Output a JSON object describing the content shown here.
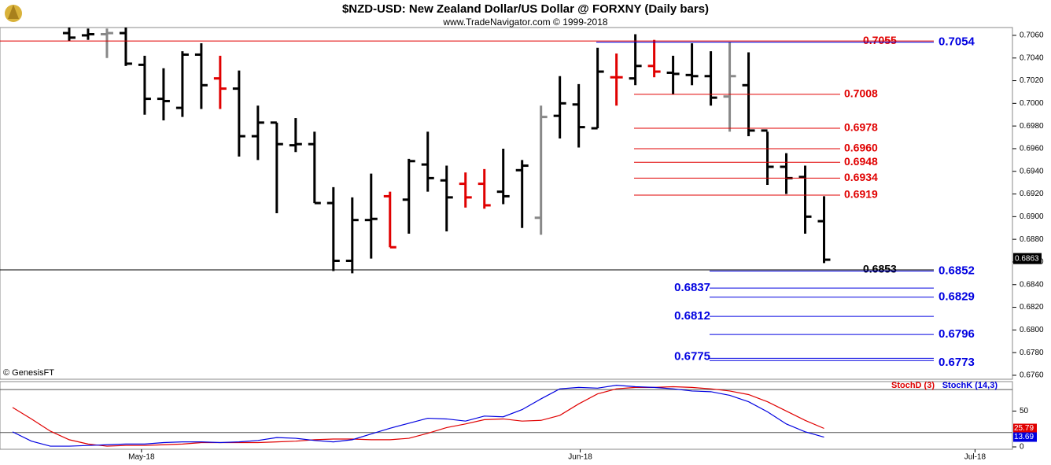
{
  "chart_data": {
    "type": "ohlc",
    "title": "$NZD-USD:  New Zealand Dollar/US Dollar @ FORXNY  (Daily bars)",
    "subtitle": "www.TradeNavigator.com © 1999-2018",
    "credit": "© GenesisFT",
    "xlim": [
      0,
      52.9
    ],
    "xticks": [
      {
        "value": 6.83,
        "label": "May-18"
      },
      {
        "value": 30.08,
        "label": "Jun-18"
      },
      {
        "value": 51,
        "label": "Jul-18"
      }
    ],
    "ylim": [
      0.67565,
      0.70669
    ],
    "yticks": [
      {
        "value": 0.676,
        "label": "0.6760"
      },
      {
        "value": 0.678,
        "label": "0.6780"
      },
      {
        "value": 0.68,
        "label": "0.6800"
      },
      {
        "value": 0.682,
        "label": "0.6820"
      },
      {
        "value": 0.684,
        "label": "0.6840"
      },
      {
        "value": 0.686,
        "label": "0.6860"
      },
      {
        "value": 0.688,
        "label": "0.6880"
      },
      {
        "value": 0.69,
        "label": "0.6900"
      },
      {
        "value": 0.692,
        "label": "0.6920"
      },
      {
        "value": 0.694,
        "label": "0.6940"
      },
      {
        "value": 0.696,
        "label": "0.6960"
      },
      {
        "value": 0.698,
        "label": "0.6980"
      },
      {
        "value": 0.7,
        "label": "0.7000"
      },
      {
        "value": 0.702,
        "label": "0.7020"
      },
      {
        "value": 0.704,
        "label": "0.7040"
      },
      {
        "value": 0.706,
        "label": "0.7060"
      }
    ],
    "last_price": 0.6863,
    "open": [
      null,
      null,
      null,
      0.7062,
      0.706,
      0.7061,
      0.7062,
      0.7034,
      0.7004,
      0.6996,
      0.7043,
      0.7022,
      0.7013,
      0.6971,
      0.6983,
      0.6963,
      0.6964,
      0.6912,
      0.6861,
      0.6897,
      0.6918,
      0.6915,
      0.6946,
      0.6932,
      0.6929,
      0.6929,
      0.6922,
      0.6941,
      0.6899,
      0.6989,
      0.6999,
      0.6978,
      0.7023,
      0.7022,
      0.7033,
      0.7027,
      0.7025,
      0.7024,
      0.7006,
      0.7016,
      0.6976,
      0.6944,
      0.6935,
      0.6896
    ],
    "high": [
      null,
      null,
      null,
      0.7068,
      0.7066,
      0.7066,
      0.7068,
      0.7042,
      0.7031,
      0.7046,
      0.7053,
      0.7042,
      0.7029,
      0.6998,
      0.6983,
      0.6987,
      0.6975,
      0.6926,
      0.6917,
      0.6938,
      0.6922,
      0.6951,
      0.6975,
      0.6945,
      0.6939,
      0.6942,
      0.696,
      0.695,
      0.6998,
      0.7024,
      0.7017,
      0.7049,
      0.7044,
      0.7061,
      0.7056,
      0.7042,
      0.7053,
      0.7046,
      0.7054,
      0.7045,
      0.6975,
      0.6956,
      0.6945,
      0.6918
    ],
    "low": [
      null,
      null,
      null,
      0.7055,
      0.7056,
      0.704,
      0.7033,
      0.699,
      0.6985,
      0.6988,
      0.6995,
      0.6995,
      0.6953,
      0.695,
      0.6903,
      0.6957,
      0.6912,
      0.6852,
      0.685,
      0.6863,
      0.6873,
      0.6885,
      0.6922,
      0.6887,
      0.6908,
      0.6907,
      0.6911,
      0.689,
      0.6884,
      0.6969,
      0.6961,
      0.6978,
      0.6998,
      0.7016,
      0.7023,
      0.7008,
      0.7016,
      0.6998,
      0.6975,
      0.6971,
      0.6928,
      0.692,
      0.6885,
      0.6859
    ],
    "close": [
      null,
      null,
      null,
      0.7058,
      0.7061,
      0.7062,
      0.7035,
      0.7004,
      0.7002,
      0.7043,
      0.7016,
      0.7013,
      0.6971,
      0.6983,
      0.6964,
      0.6964,
      0.6912,
      0.6861,
      0.6897,
      0.6898,
      0.6873,
      0.6949,
      0.6934,
      0.6917,
      0.6917,
      0.691,
      0.6918,
      0.6945,
      0.6988,
      0.7,
      0.6979,
      0.7028,
      0.7023,
      0.7033,
      0.7028,
      0.7026,
      0.7024,
      0.7005,
      0.7024,
      0.6976,
      0.6944,
      0.6934,
      0.69,
      0.6862
    ],
    "bar_colors": [
      null,
      null,
      null,
      "#000",
      "#000",
      "#888",
      "#000",
      "#000",
      "#000",
      "#000",
      "#000",
      "#e00000",
      "#000",
      "#000",
      "#000",
      "#000",
      "#000",
      "#000",
      "#000",
      "#000",
      "#e00000",
      "#000",
      "#000",
      "#000",
      "#e00000",
      "#e00000",
      "#000",
      "#000",
      "#888",
      "#000",
      "#000",
      "#000",
      "#e00000",
      "#000",
      "#e00000",
      "#000",
      "#000",
      "#000",
      "#888",
      "#000",
      "#000",
      "#000",
      "#000",
      "#000"
    ],
    "levels": [
      {
        "value": 0.7055,
        "color": "#e00000"
      },
      {
        "value": 0.7054,
        "color": "#0000e0"
      },
      {
        "value": 0.7008,
        "color": "#e00000"
      },
      {
        "value": 0.6978,
        "color": "#e00000"
      },
      {
        "value": 0.696,
        "label": "0.6960",
        "color": "#e00000"
      },
      {
        "value": 0.6948,
        "color": "#e00000"
      },
      {
        "value": 0.6934,
        "color": "#e00000"
      },
      {
        "value": 0.6919,
        "color": "#e00000"
      },
      {
        "value": 0.6853,
        "color": "#000000"
      },
      {
        "value": 0.6852,
        "color": "#0000e0"
      },
      {
        "value": 0.6837,
        "color": "#0000e0"
      },
      {
        "value": 0.6829,
        "color": "#0000e0"
      },
      {
        "value": 0.6812,
        "color": "#0000e0"
      },
      {
        "value": 0.6796,
        "color": "#0000e0"
      },
      {
        "value": 0.6775,
        "color": "#0000e0"
      },
      {
        "value": 0.6773,
        "color": "#0000e0"
      }
    ],
    "stoch": {
      "ylim": [
        -3.3,
        91.1
      ],
      "yticks": [
        0,
        50
      ],
      "guides": [
        20,
        80
      ],
      "series": [
        {
          "name": "StochD (3)",
          "color": "#e00000",
          "last_label": "25.79",
          "values": [
            55,
            39,
            22,
            10,
            4,
            1,
            2,
            2,
            3,
            4,
            6,
            6,
            6,
            6,
            7,
            8,
            10,
            11,
            11,
            10,
            10,
            12,
            19,
            27,
            32,
            38,
            39,
            36,
            37,
            44,
            60,
            74,
            81,
            83,
            83,
            84,
            83,
            81,
            78,
            73,
            63,
            50,
            37,
            25.79
          ]
        },
        {
          "name": "StochK (14,3)",
          "color": "#0000e0",
          "last_label": "13.69",
          "values": [
            21,
            8,
            1,
            1,
            2,
            3,
            4,
            4,
            6,
            7,
            7,
            6,
            7,
            9,
            13,
            12,
            9,
            7,
            10,
            18,
            26,
            33,
            40,
            39,
            36,
            43,
            42,
            52,
            67,
            81,
            83,
            82,
            86,
            84,
            83,
            81,
            78,
            77,
            72,
            63,
            49,
            32,
            21,
            13.69
          ]
        }
      ]
    }
  }
}
